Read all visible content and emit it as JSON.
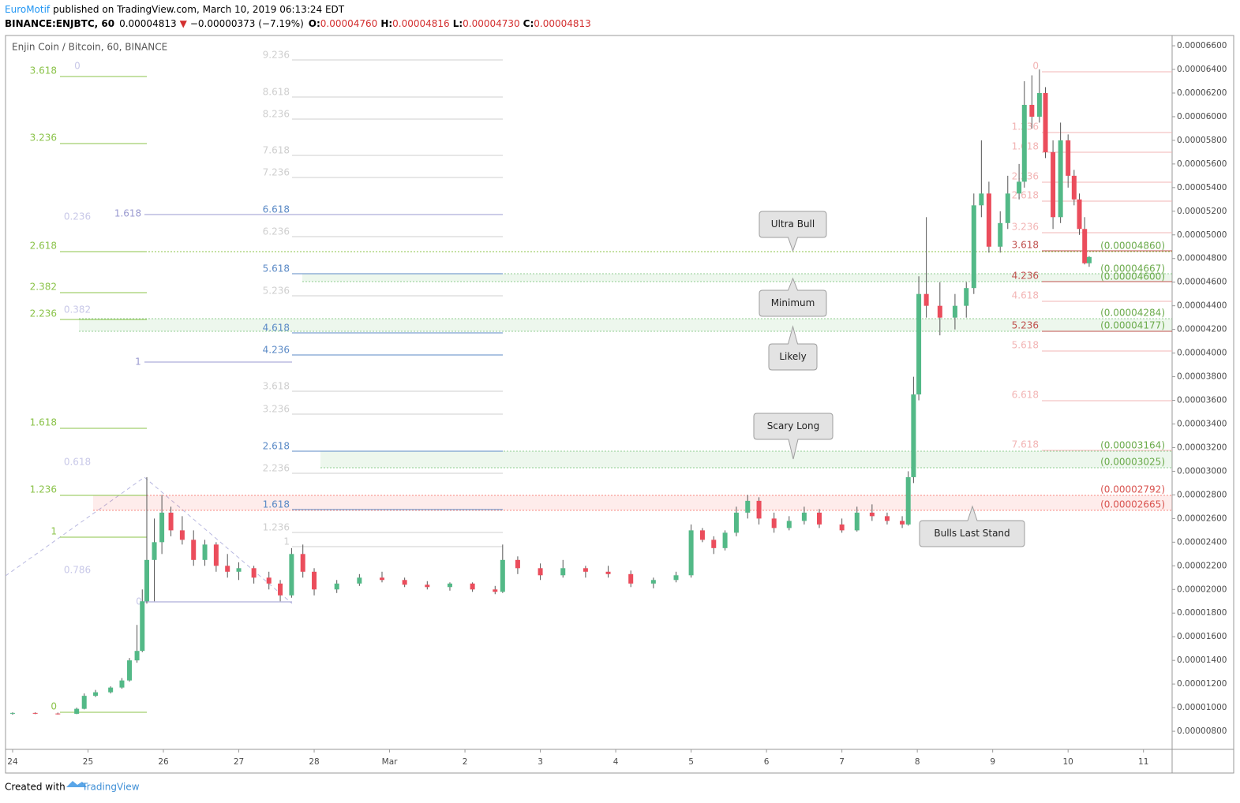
{
  "header": {
    "author": "EuroMotif",
    "published": "published on TradingView.com, March 10, 2019 06:13:24 EDT",
    "symbol": "BINANCE:ENJBTC, 60",
    "last": "0.00004813",
    "arrow": "▼",
    "change": "−0.00000373 (−7.19%)",
    "o_label": "O:",
    "o": "0.00004760",
    "h_label": "H:",
    "h": "0.00004816",
    "l_label": "L:",
    "l": "0.00004730",
    "c_label": "C:",
    "c": "0.00004813"
  },
  "footer": {
    "created": "Created with",
    "brand": "TradingView"
  },
  "chart_data": {
    "type": "candlestick",
    "title": "Enjin Coin / Bitcoin, 60, BINANCE",
    "up_color": "#53b987",
    "down_color": "#eb4d5c",
    "xlim": [
      -0.094,
      15.38
    ],
    "xticks": [
      {
        "value": 0,
        "label": "24"
      },
      {
        "value": 1,
        "label": "25"
      },
      {
        "value": 2,
        "label": "26"
      },
      {
        "value": 3,
        "label": "27"
      },
      {
        "value": 4,
        "label": "28"
      },
      {
        "value": 5,
        "label": "Mar"
      },
      {
        "value": 6,
        "label": "2"
      },
      {
        "value": 7,
        "label": "3"
      },
      {
        "value": 8,
        "label": "4"
      },
      {
        "value": 9,
        "label": "5"
      },
      {
        "value": 10,
        "label": "6"
      },
      {
        "value": 11,
        "label": "7"
      },
      {
        "value": 12,
        "label": "8"
      },
      {
        "value": 13,
        "label": "9"
      },
      {
        "value": 14,
        "label": "10"
      },
      {
        "value": 15,
        "label": "11"
      }
    ],
    "ylim": [
      6.47e-06,
      6.687e-05
    ],
    "yticks": [
      {
        "value": 8e-06,
        "label": "0.00000800"
      },
      {
        "value": 1e-05,
        "label": "0.00001000"
      },
      {
        "value": 1.2e-05,
        "label": "0.00001200"
      },
      {
        "value": 1.4e-05,
        "label": "0.00001400"
      },
      {
        "value": 1.6e-05,
        "label": "0.00001600"
      },
      {
        "value": 1.8e-05,
        "label": "0.00001800"
      },
      {
        "value": 2e-05,
        "label": "0.00002000"
      },
      {
        "value": 2.2e-05,
        "label": "0.00002200"
      },
      {
        "value": 2.4e-05,
        "label": "0.00002400"
      },
      {
        "value": 2.6e-05,
        "label": "0.00002600"
      },
      {
        "value": 2.8e-05,
        "label": "0.00002800"
      },
      {
        "value": 3e-05,
        "label": "0.00003000"
      },
      {
        "value": 3.2e-05,
        "label": "0.00003200"
      },
      {
        "value": 3.4e-05,
        "label": "0.00003400"
      },
      {
        "value": 3.6e-05,
        "label": "0.00003600"
      },
      {
        "value": 3.8e-05,
        "label": "0.00003800"
      },
      {
        "value": 4e-05,
        "label": "0.00004000"
      },
      {
        "value": 4.2e-05,
        "label": "0.00004200"
      },
      {
        "value": 4.4e-05,
        "label": "0.00004400"
      },
      {
        "value": 4.6e-05,
        "label": "0.00004600"
      },
      {
        "value": 4.8e-05,
        "label": "0.00004800"
      },
      {
        "value": 5e-05,
        "label": "0.00005000"
      },
      {
        "value": 5.2e-05,
        "label": "0.00005200"
      },
      {
        "value": 5.4e-05,
        "label": "0.00005400"
      },
      {
        "value": 5.6e-05,
        "label": "0.00005600"
      },
      {
        "value": 5.8e-05,
        "label": "0.00005800"
      },
      {
        "value": 6e-05,
        "label": "0.00006000"
      },
      {
        "value": 6.2e-05,
        "label": "0.00006200"
      },
      {
        "value": 6.4e-05,
        "label": "0.00006400"
      },
      {
        "value": 6.6e-05,
        "label": "0.00006600"
      }
    ],
    "x": [
      0,
      0.3,
      0.6,
      0.85,
      0.95,
      1.1,
      1.3,
      1.45,
      1.55,
      1.65,
      1.72,
      1.78,
      1.88,
      1.98,
      2.1,
      2.25,
      2.4,
      2.55,
      2.7,
      2.85,
      3,
      3.2,
      3.4,
      3.55,
      3.7,
      3.85,
      4,
      4.3,
      4.6,
      4.9,
      5.2,
      5.5,
      5.8,
      6.1,
      6.4,
      6.5,
      6.7,
      7,
      7.3,
      7.6,
      7.9,
      8.2,
      8.5,
      8.8,
      9,
      9.15,
      9.3,
      9.45,
      9.6,
      9.75,
      9.9,
      10.1,
      10.3,
      10.5,
      10.7,
      11,
      11.2,
      11.4,
      11.6,
      11.8,
      11.88,
      11.95,
      12.02,
      12.12,
      12.3,
      12.5,
      12.65,
      12.75,
      12.85,
      12.95,
      13.1,
      13.2,
      13.35,
      13.42,
      13.52,
      13.62,
      13.7,
      13.8,
      13.9,
      14,
      14.08,
      14.15,
      14.22,
      14.28
    ],
    "open": [
      9.5e-06,
      9.55e-06,
      9.5e-06,
      9.48e-06,
      9.9e-06,
      1.1e-05,
      1.13e-05,
      1.17e-05,
      1.23e-05,
      1.4e-05,
      1.48e-05,
      1.9e-05,
      2.25e-05,
      2.4e-05,
      2.65e-05,
      2.5e-05,
      2.42e-05,
      2.25e-05,
      2.38e-05,
      2.2e-05,
      2.15e-05,
      2.18e-05,
      2.1e-05,
      2.05e-05,
      1.95e-05,
      2.3e-05,
      2.15e-05,
      2e-05,
      2.05e-05,
      2.1e-05,
      2.08e-05,
      2.04e-05,
      2.02e-05,
      2.05e-05,
      2e-05,
      1.98e-05,
      2.25e-05,
      2.18e-05,
      2.12e-05,
      2.18e-05,
      2.15e-05,
      2.13e-05,
      2.05e-05,
      2.08e-05,
      2.12e-05,
      2.5e-05,
      2.42e-05,
      2.35e-05,
      2.48e-05,
      2.65e-05,
      2.75e-05,
      2.6e-05,
      2.52e-05,
      2.58e-05,
      2.65e-05,
      2.55e-05,
      2.5e-05,
      2.65e-05,
      2.62e-05,
      2.58e-05,
      2.55e-05,
      2.95e-05,
      3.65e-05,
      4.5e-05,
      4.4e-05,
      4.3e-05,
      4.4e-05,
      4.55e-05,
      5.25e-05,
      5.35e-05,
      4.9e-05,
      5.1e-05,
      5.35e-05,
      5.45e-05,
      6.1e-05,
      6e-05,
      6.2e-05,
      5.7e-05,
      5.15e-05,
      5.8e-05,
      5.5e-05,
      5.3e-05,
      5.05e-05,
      4.76e-05
    ],
    "high": [
      9.6e-06,
      9.6e-06,
      9.58e-06,
      1e-05,
      1.12e-05,
      1.15e-05,
      1.18e-05,
      1.25e-05,
      1.42e-05,
      1.7e-05,
      2e-05,
      2.95e-05,
      2.6e-05,
      2.8e-05,
      2.7e-05,
      2.62e-05,
      2.5e-05,
      2.42e-05,
      2.4e-05,
      2.3e-05,
      2.23e-05,
      2.2e-05,
      2.15e-05,
      2.08e-05,
      2.35e-05,
      2.38e-05,
      2.18e-05,
      2.08e-05,
      2.13e-05,
      2.15e-05,
      2.1e-05,
      2.07e-05,
      2.06e-05,
      2.06e-05,
      2.03e-05,
      2.38e-05,
      2.28e-05,
      2.22e-05,
      2.25e-05,
      2.2e-05,
      2.2e-05,
      2.16e-05,
      2.1e-05,
      2.15e-05,
      2.55e-05,
      2.52e-05,
      2.45e-05,
      2.5e-05,
      2.7e-05,
      2.8e-05,
      2.78e-05,
      2.65e-05,
      2.62e-05,
      2.7e-05,
      2.68e-05,
      2.6e-05,
      2.7e-05,
      2.72e-05,
      2.65e-05,
      2.62e-05,
      3e-05,
      3.8e-05,
      4.65e-05,
      5.15e-05,
      4.6e-05,
      4.5e-05,
      4.6e-05,
      5.35e-05,
      5.8e-05,
      5.45e-05,
      5.2e-05,
      5.5e-05,
      5.6e-05,
      6.3e-05,
      6.35e-05,
      6.4e-05,
      6.25e-05,
      5.8e-05,
      5.95e-05,
      5.85e-05,
      5.55e-05,
      5.35e-05,
      5.15e-05,
      4.82e-05
    ],
    "low": [
      9.4e-06,
      9.45e-06,
      9.42e-06,
      9.45e-06,
      9.85e-06,
      1.09e-05,
      1.12e-05,
      1.16e-05,
      1.22e-05,
      1.38e-05,
      1.47e-05,
      1.88e-05,
      1.9e-05,
      2.3e-05,
      2.45e-05,
      2.38e-05,
      2.2e-05,
      2.2e-05,
      2.15e-05,
      2.1e-05,
      2.08e-05,
      2.05e-05,
      2e-05,
      1.9e-05,
      1.93e-05,
      2.1e-05,
      1.95e-05,
      1.97e-05,
      2.03e-05,
      2.06e-05,
      2.02e-05,
      2e-05,
      1.99e-05,
      1.98e-05,
      1.96e-05,
      1.97e-05,
      2.13e-05,
      2.08e-05,
      2.1e-05,
      2.1e-05,
      2.1e-05,
      2.02e-05,
      2.01e-05,
      2.06e-05,
      2.1e-05,
      2.4e-05,
      2.3e-05,
      2.33e-05,
      2.45e-05,
      2.6e-05,
      2.55e-05,
      2.48e-05,
      2.5e-05,
      2.55e-05,
      2.52e-05,
      2.48e-05,
      2.49e-05,
      2.58e-05,
      2.55e-05,
      2.52e-05,
      2.54e-05,
      2.9e-05,
      3.6e-05,
      4.3e-05,
      4.15e-05,
      4.2e-05,
      4.3e-05,
      4.5e-05,
      5.15e-05,
      4.85e-05,
      4.85e-05,
      5.05e-05,
      5.3e-05,
      5.4e-05,
      5.9e-05,
      5.95e-05,
      5.65e-05,
      5.05e-05,
      5.1e-05,
      5.4e-05,
      5.25e-05,
      5e-05,
      4.75e-05,
      4.73e-05
    ],
    "close": [
      9.55e-06,
      9.5e-06,
      9.48e-06,
      9.9e-06,
      1.1e-05,
      1.13e-05,
      1.17e-05,
      1.23e-05,
      1.4e-05,
      1.48e-05,
      1.9e-05,
      2.25e-05,
      2.4e-05,
      2.65e-05,
      2.5e-05,
      2.42e-05,
      2.25e-05,
      2.38e-05,
      2.2e-05,
      2.15e-05,
      2.18e-05,
      2.1e-05,
      2.05e-05,
      1.95e-05,
      2.3e-05,
      2.15e-05,
      2e-05,
      2.05e-05,
      2.1e-05,
      2.08e-05,
      2.04e-05,
      2.02e-05,
      2.05e-05,
      2e-05,
      1.98e-05,
      2.25e-05,
      2.18e-05,
      2.12e-05,
      2.18e-05,
      2.15e-05,
      2.13e-05,
      2.05e-05,
      2.08e-05,
      2.12e-05,
      2.5e-05,
      2.42e-05,
      2.35e-05,
      2.48e-05,
      2.65e-05,
      2.75e-05,
      2.6e-05,
      2.52e-05,
      2.58e-05,
      2.65e-05,
      2.55e-05,
      2.5e-05,
      2.65e-05,
      2.62e-05,
      2.58e-05,
      2.55e-05,
      2.95e-05,
      3.65e-05,
      4.5e-05,
      4.4e-05,
      4.3e-05,
      4.4e-05,
      4.55e-05,
      5.25e-05,
      5.35e-05,
      4.9e-05,
      5.1e-05,
      5.35e-05,
      5.45e-05,
      6.1e-05,
      6e-05,
      6.2e-05,
      5.7e-05,
      5.15e-05,
      5.8e-05,
      5.5e-05,
      5.3e-05,
      5.05e-05,
      4.76e-05,
      4.813e-05
    ],
    "fib_left": [
      "3.618",
      "3.236",
      "2.618",
      "2.382",
      "2.236",
      "1.618",
      "1.236",
      "1",
      "0"
    ],
    "fib_mid": [
      "9.236",
      "8.618",
      "8.236",
      "7.618",
      "7.236",
      "6.618",
      "6.236",
      "5.618",
      "5.236",
      "4.618",
      "4.236",
      "3.618",
      "3.236",
      "2.618",
      "2.236",
      "1.618",
      "1.236",
      "1"
    ],
    "fib_faint": [
      "0",
      "0.236",
      "1.618",
      "0.382",
      "1",
      "0.618",
      "0.786",
      "0"
    ],
    "fib_right": [
      "0",
      "1.236",
      "1.618",
      "2.236",
      "2.618",
      "3.236",
      "3.618",
      "4.236",
      "4.618",
      "5.236",
      "5.618",
      "6.618",
      "7.618"
    ],
    "levels": [
      "(0.00004860)",
      "(0.00004667)",
      "(0.00004600)",
      "(0.00004284)",
      "(0.00004177)",
      "(0.00003164)",
      "(0.00003025)",
      "(0.00002792)",
      "(0.00002665)"
    ],
    "callouts": [
      "Ultra Bull",
      "Minimum",
      "Likely",
      "Scary Long",
      "Bulls Last Stand"
    ]
  }
}
